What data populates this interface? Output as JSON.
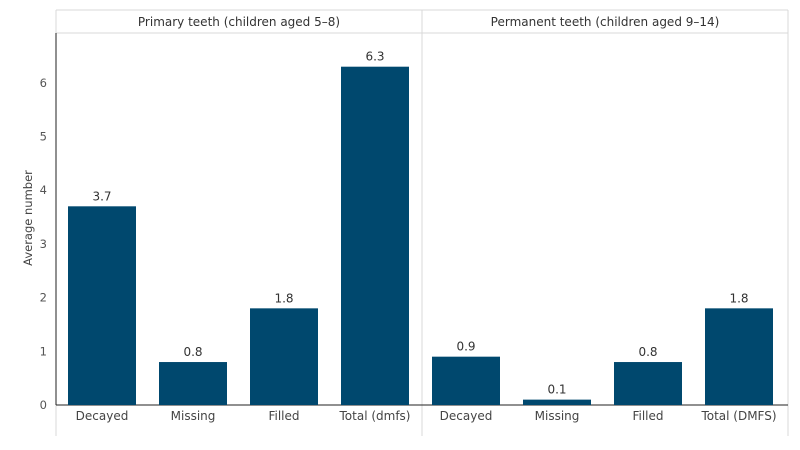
{
  "chart_data": {
    "type": "bar",
    "ylabel": "Average number",
    "ylim": [
      0,
      7
    ],
    "yticks": [
      0,
      1,
      2,
      3,
      4,
      5,
      6
    ],
    "grid": false,
    "bar_color": "#00486E",
    "panels": [
      {
        "title": "Primary teeth (children aged 5–8)",
        "categories": [
          "Decayed",
          "Missing",
          "Filled",
          "Total (dmfs)"
        ],
        "values": [
          3.7,
          0.8,
          1.8,
          6.3
        ],
        "value_labels": [
          "3.7",
          "0.8",
          "1.8",
          "6.3"
        ]
      },
      {
        "title": "Permanent teeth (children aged 9–14)",
        "categories": [
          "Decayed",
          "Missing",
          "Filled",
          "Total (DMFS)"
        ],
        "values": [
          0.9,
          0.1,
          0.8,
          1.8
        ],
        "value_labels": [
          "0.9",
          "0.1",
          "0.8",
          "1.8"
        ]
      }
    ]
  }
}
